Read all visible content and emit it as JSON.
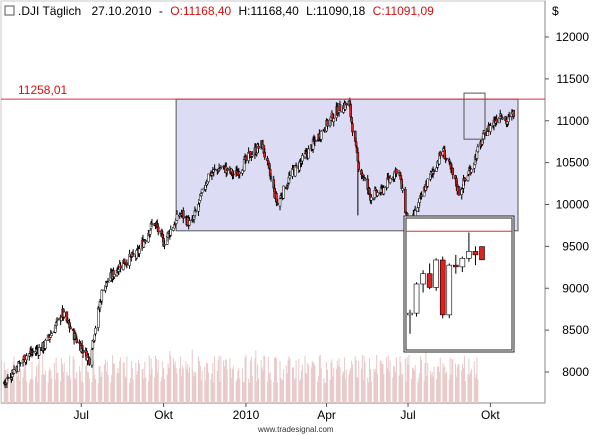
{
  "header": {
    "symbol": ".DJI Täglich",
    "date": "27.10.2010",
    "open_label": "O:11168,40",
    "high_label": "H:11168,40",
    "low_label": "L:11090,18",
    "close_label": "C:11091,09",
    "currency": "$"
  },
  "watermark": "www.tradesignal.com",
  "colors": {
    "background": "#ffffff",
    "up_candle": "#ffffff",
    "down_candle": "#e0201c",
    "wick": "#000000",
    "range_box_fill": "#dcdcf4",
    "resistance_line": "#e0303a",
    "resistance_label": "#d01010",
    "volume": "#e8c8c8",
    "header_open": "#d01010",
    "header_close": "#d01010"
  },
  "chart_data": {
    "type": "candlestick",
    "title": ".DJI Täglich",
    "y_axis": {
      "ticks": [
        8000,
        8500,
        9000,
        9500,
        10000,
        10500,
        11000,
        11500,
        12000
      ],
      "tick_labels": [
        "8000",
        "8500",
        "9000",
        "9500",
        "10000",
        "10500",
        "11000",
        "11500",
        "12000"
      ],
      "range": [
        7800,
        12300
      ],
      "unit": "$"
    },
    "x_axis": {
      "range": [
        "2009-03-01",
        "2010-12-01"
      ],
      "ticks": [
        {
          "date": "2009-07-01",
          "label": "Jul"
        },
        {
          "date": "2009-10-01",
          "label": "Okt"
        },
        {
          "date": "2010-01-01",
          "label": "2010"
        },
        {
          "date": "2010-04-01",
          "label": "Apr"
        },
        {
          "date": "2010-07-01",
          "label": "Jul"
        },
        {
          "date": "2010-10-01",
          "label": "Okt"
        }
      ]
    },
    "resistance_line": {
      "value": 11258.01,
      "label": "11258,01"
    },
    "range_box": {
      "from": "2009-10-15",
      "to": "2010-12-01",
      "low": 9686,
      "high": 11258.01
    },
    "price_path": [
      {
        "date": "2009-03-09",
        "close": 6900
      },
      {
        "date": "2009-03-20",
        "close": 7700
      },
      {
        "date": "2009-04-01",
        "close": 7800
      },
      {
        "date": "2009-04-15",
        "close": 8000
      },
      {
        "date": "2009-05-01",
        "close": 8200
      },
      {
        "date": "2009-05-20",
        "close": 8300
      },
      {
        "date": "2009-06-10",
        "close": 8700
      },
      {
        "date": "2009-06-25",
        "close": 8400
      },
      {
        "date": "2009-07-10",
        "close": 8150
      },
      {
        "date": "2009-07-25",
        "close": 9000
      },
      {
        "date": "2009-08-15",
        "close": 9300
      },
      {
        "date": "2009-09-01",
        "close": 9400
      },
      {
        "date": "2009-09-20",
        "close": 9800
      },
      {
        "date": "2009-10-01",
        "close": 9550
      },
      {
        "date": "2009-10-20",
        "close": 9900
      },
      {
        "date": "2009-11-01",
        "close": 9750
      },
      {
        "date": "2009-11-20",
        "close": 10350
      },
      {
        "date": "2009-12-05",
        "close": 10450
      },
      {
        "date": "2009-12-20",
        "close": 10350
      },
      {
        "date": "2010-01-05",
        "close": 10580
      },
      {
        "date": "2010-01-19",
        "close": 10720
      },
      {
        "date": "2010-02-05",
        "close": 10000
      },
      {
        "date": "2010-02-20",
        "close": 10350
      },
      {
        "date": "2010-03-10",
        "close": 10600
      },
      {
        "date": "2010-03-25",
        "close": 10850
      },
      {
        "date": "2010-04-15",
        "close": 11150
      },
      {
        "date": "2010-04-26",
        "close": 11205
      },
      {
        "date": "2010-05-06",
        "close": 10500
      },
      {
        "date": "2010-05-20",
        "close": 10100
      },
      {
        "date": "2010-06-01",
        "close": 10150
      },
      {
        "date": "2010-06-20",
        "close": 10450
      },
      {
        "date": "2010-07-02",
        "close": 9690
      },
      {
        "date": "2010-07-20",
        "close": 10200
      },
      {
        "date": "2010-08-09",
        "close": 10650
      },
      {
        "date": "2010-08-27",
        "close": 10150
      },
      {
        "date": "2010-09-10",
        "close": 10450
      },
      {
        "date": "2010-09-25",
        "close": 10850
      },
      {
        "date": "2010-10-13",
        "close": 11100
      },
      {
        "date": "2010-10-19",
        "close": 10980
      },
      {
        "date": "2010-10-27",
        "close": 11091.09
      }
    ],
    "inset_candles": [
      {
        "open": 10770,
        "high": 10800,
        "low": 10660,
        "close": 10780
      },
      {
        "open": 10780,
        "high": 10960,
        "low": 10760,
        "close": 10950
      },
      {
        "open": 10950,
        "high": 11030,
        "low": 10900,
        "close": 11010
      },
      {
        "open": 11010,
        "high": 11070,
        "low": 10920,
        "close": 10930
      },
      {
        "open": 10930,
        "high": 11100,
        "low": 10910,
        "close": 11090
      },
      {
        "open": 11090,
        "high": 11110,
        "low": 10750,
        "close": 10770
      },
      {
        "open": 10770,
        "high": 11070,
        "low": 10750,
        "close": 11060
      },
      {
        "open": 11060,
        "high": 11120,
        "low": 11010,
        "close": 11050
      },
      {
        "open": 11050,
        "high": 11110,
        "low": 11020,
        "close": 11100
      },
      {
        "open": 11100,
        "high": 11250,
        "low": 11080,
        "close": 11140
      },
      {
        "open": 11140,
        "high": 11170,
        "low": 11060,
        "close": 11120
      },
      {
        "open": 11168.4,
        "high": 11168.4,
        "low": 11090.18,
        "close": 11091.09
      }
    ],
    "inset_range": {
      "low": 10600,
      "high": 11300
    },
    "inset_level": 11258.01
  }
}
